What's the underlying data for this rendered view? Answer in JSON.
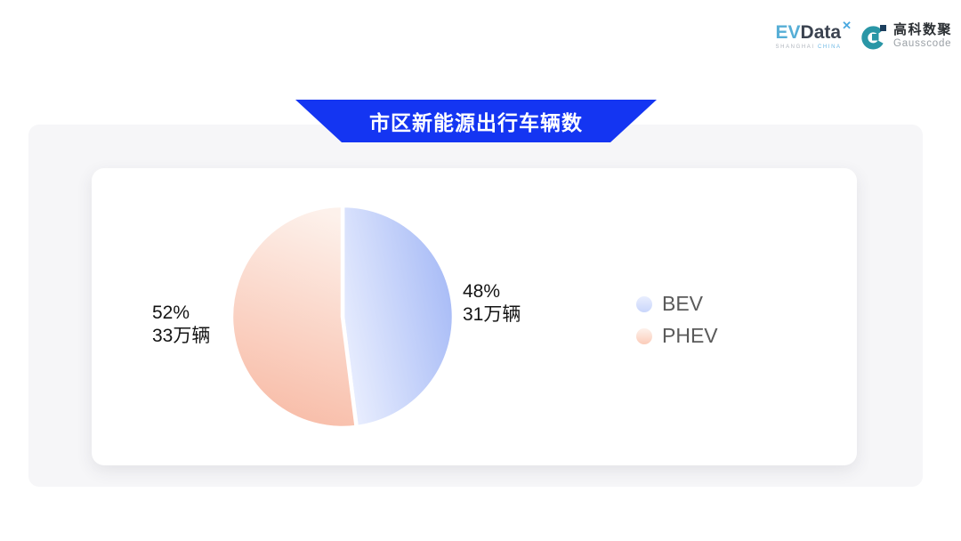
{
  "header": {
    "evdata": {
      "ev": "EV",
      "data": "Data",
      "mark": "✕",
      "tagline_left": "SHANGHAI",
      "tagline_right": "CHINA"
    },
    "gausscode": {
      "cn": "高科数聚",
      "en": "Gausscode",
      "icon_teal": "#2a96a6",
      "icon_navy": "#1d3f5e"
    }
  },
  "banner": {
    "title": "市区新能源出行车辆数",
    "color": "#1435f2"
  },
  "chart_data": {
    "type": "pie",
    "title": "市区新能源出行车辆数",
    "start_angle": 90,
    "clockwise": true,
    "legend_position": "right",
    "legend": [
      "BEV",
      "PHEV"
    ],
    "series": [
      {
        "name": "BEV",
        "percent": 48,
        "percent_label": "48%",
        "value": 31,
        "unit": "万辆",
        "value_label": "31万辆",
        "gradient": [
          "#e9eefe",
          "#a6baf6"
        ],
        "gradient_dir": [
          0,
          0.7,
          1,
          0.3
        ],
        "legend_color": "#c9d6fb"
      },
      {
        "name": "PHEV",
        "percent": 52,
        "percent_label": "52%",
        "value": 33,
        "unit": "万辆",
        "value_label": "33万辆",
        "gradient": [
          "#fdf1eb",
          "#f8bba6"
        ],
        "gradient_dir": [
          0.6,
          0,
          0.4,
          1
        ],
        "legend_color": "#fbccb9"
      }
    ]
  },
  "colors": {
    "page_bg": "#ffffff",
    "panel_bg": "#f6f6f8",
    "card_bg": "#ffffff",
    "banner_text": "#ffffff",
    "label_text": "#141414",
    "legend_text": "#5a5a5a",
    "divider": "#ffffff"
  }
}
